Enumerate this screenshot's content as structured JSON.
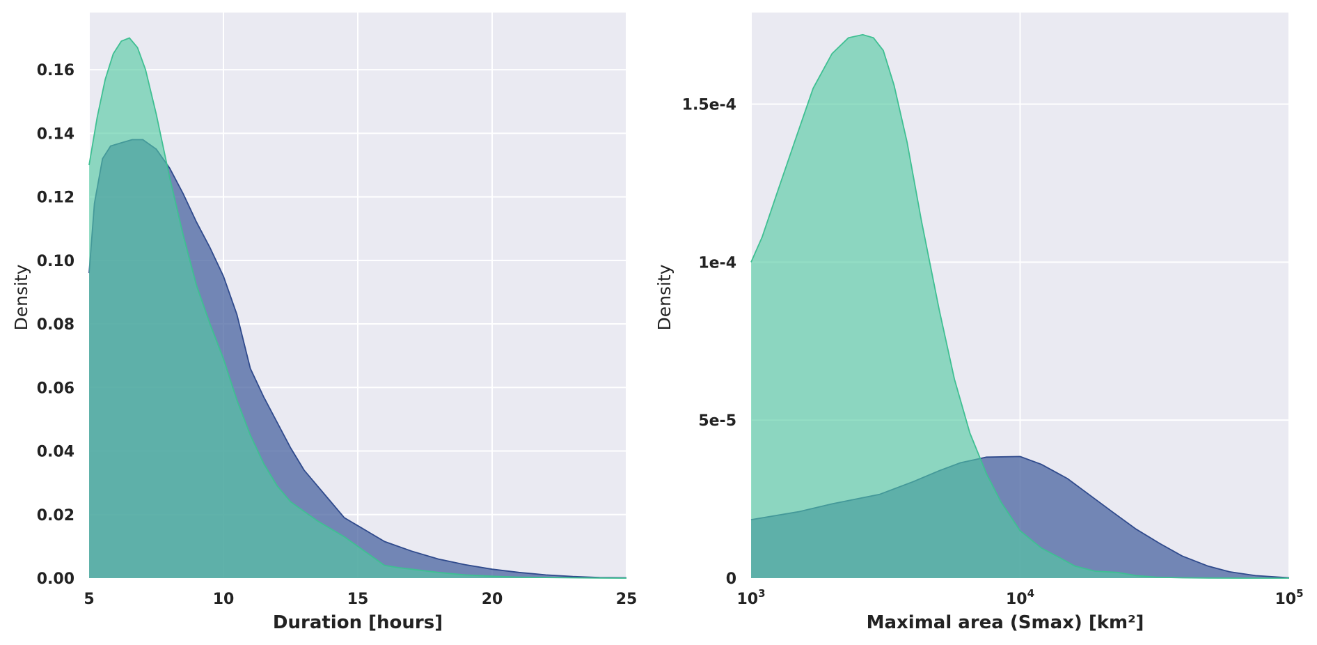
{
  "chart_data": [
    {
      "type": "area",
      "xlabel": "Duration [hours]",
      "ylabel": "Density",
      "xlim": [
        5,
        25
      ],
      "ylim": [
        0,
        0.178
      ],
      "x_ticks": [
        5,
        10,
        15,
        20,
        25
      ],
      "x_tick_labels": [
        "5",
        "10",
        "15",
        "20",
        "25"
      ],
      "y_ticks": [
        0,
        0.02,
        0.04,
        0.06,
        0.08,
        0.1,
        0.12,
        0.14,
        0.16
      ],
      "y_tick_labels": [
        "0.00",
        "0.02",
        "0.04",
        "0.06",
        "0.08",
        "0.10",
        "0.12",
        "0.14",
        "0.16"
      ],
      "grid": true,
      "series": [
        {
          "color": "#4a64a0",
          "x": [
            5.0,
            5.2,
            5.5,
            5.8,
            6.2,
            6.6,
            7.0,
            7.5,
            8.0,
            8.5,
            9.0,
            9.5,
            10.0,
            10.5,
            11.0,
            11.5,
            12.0,
            12.5,
            13.0,
            13.5,
            14.0,
            14.5,
            15.0,
            15.5,
            16.0,
            17.0,
            18.0,
            19.0,
            20.0,
            21.0,
            22.0,
            23.0,
            24.0,
            25.0
          ],
          "y": [
            0.096,
            0.118,
            0.132,
            0.136,
            0.137,
            0.138,
            0.138,
            0.135,
            0.129,
            0.121,
            0.112,
            0.104,
            0.095,
            0.083,
            0.066,
            0.057,
            0.049,
            0.041,
            0.034,
            0.029,
            0.024,
            0.019,
            0.0165,
            0.014,
            0.0115,
            0.0085,
            0.006,
            0.0042,
            0.0028,
            0.0018,
            0.001,
            0.0005,
            0.0002,
            0.0001
          ]
        },
        {
          "color": "#52c9a1",
          "x": [
            5.0,
            5.3,
            5.6,
            5.9,
            6.2,
            6.5,
            6.8,
            7.1,
            7.5,
            8.0,
            8.5,
            9.0,
            9.5,
            10.0,
            10.5,
            11.0,
            11.5,
            12.0,
            12.5,
            13.0,
            13.5,
            14.0,
            14.5,
            15.0,
            15.5,
            16.0,
            16.5,
            17.0,
            18.0,
            19.0,
            20.0,
            21.0,
            22.0,
            23.0,
            24.0,
            25.0
          ],
          "y": [
            0.13,
            0.145,
            0.157,
            0.165,
            0.169,
            0.17,
            0.167,
            0.16,
            0.146,
            0.126,
            0.108,
            0.092,
            0.08,
            0.069,
            0.056,
            0.045,
            0.036,
            0.029,
            0.024,
            0.021,
            0.018,
            0.0155,
            0.013,
            0.01,
            0.007,
            0.004,
            0.0033,
            0.0028,
            0.0018,
            0.001,
            0.0006,
            0.0003,
            0.0002,
            0.0001,
            5e-05,
            0.0
          ]
        }
      ]
    },
    {
      "type": "area",
      "xlabel": "Maximal area (Smax) [km²]",
      "ylabel": "Density",
      "xscale": "log",
      "xlim": [
        1000,
        100000
      ],
      "ylim": [
        0,
        0.000179
      ],
      "x_ticks": [
        1000,
        10000,
        100000
      ],
      "x_tick_labels": [
        {
          "base": "10",
          "exp": "3"
        },
        {
          "base": "10",
          "exp": "4"
        },
        {
          "base": "10",
          "exp": "5"
        }
      ],
      "y_ticks": [
        0,
        5e-05,
        0.0001,
        0.00015
      ],
      "y_tick_labels": [
        "0",
        "5e-5",
        "1e-4",
        "1.5e-4"
      ],
      "grid": true,
      "series": [
        {
          "color": "#4a64a0",
          "x": [
            1000,
            1500,
            2000,
            3000,
            4000,
            5000,
            6000,
            7500,
            10000,
            12000,
            15000,
            18000,
            22000,
            27000,
            33000,
            40000,
            50000,
            60000,
            75000,
            100000
          ],
          "y": [
            1.85e-05,
            2.1e-05,
            2.35e-05,
            2.65e-05,
            3.05e-05,
            3.4e-05,
            3.65e-05,
            3.83e-05,
            3.85e-05,
            3.6e-05,
            3.15e-05,
            2.65e-05,
            2.1e-05,
            1.55e-05,
            1.1e-05,
            7e-06,
            3.8e-06,
            2e-06,
            8e-07,
            1e-07
          ]
        },
        {
          "color": "#52c9a1",
          "x": [
            1000,
            1100,
            1250,
            1450,
            1700,
            2000,
            2300,
            2600,
            2850,
            3100,
            3400,
            3800,
            4300,
            5000,
            5700,
            6500,
            7500,
            8500,
            10000,
            12000,
            14000,
            16000,
            19000,
            23000,
            27000,
            32000,
            40000,
            50000,
            70000,
            100000
          ],
          "y": [
            0.0001,
            0.000108,
            0.000122,
            0.000138,
            0.000155,
            0.000166,
            0.000171,
            0.000172,
            0.000171,
            0.000167,
            0.000156,
            0.000138,
            0.000113,
            8.5e-05,
            6.3e-05,
            4.6e-05,
            3.3e-05,
            2.4e-05,
            1.5e-05,
            9.5e-06,
            6.5e-06,
            3.8e-06,
            2.2e-06,
            1.8e-06,
            8e-07,
            3e-07,
            1e-07,
            5e-08,
            0.0,
            0.0
          ]
        }
      ]
    }
  ]
}
